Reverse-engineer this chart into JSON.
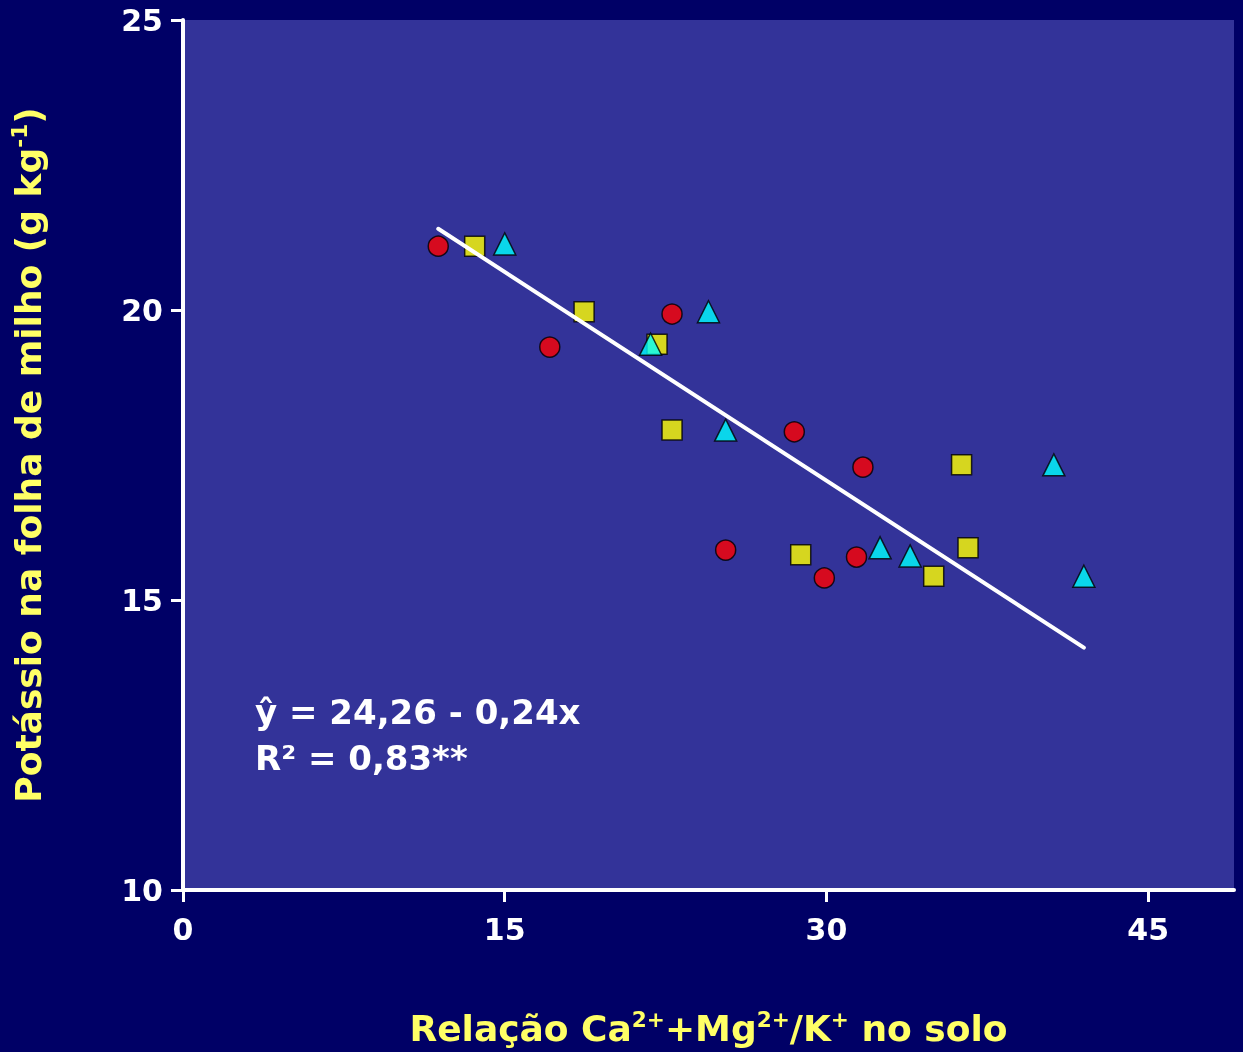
{
  "chart_data": {
    "type": "scatter",
    "xlabel": "Relação Ca$^{2+}$+Mg$^{2+}$/K$^{+}$ no solo",
    "ylabel": "Potássio na folha de milho (g kg$^{-1}$)",
    "xlim": [
      0,
      49
    ],
    "xticks": [
      0,
      15,
      30,
      45
    ],
    "ylim": [
      10,
      25
    ],
    "yticks": [
      10,
      15,
      20,
      25
    ],
    "grid": false,
    "annotations": [
      "ŷ = 24,26 - 0,24x",
      "R² = 0,83**"
    ],
    "series": [
      {
        "type": "scatter",
        "marker": "circle",
        "color": "#ff0000",
        "x": [
          11.9,
          17.1,
          22.8,
          25.3,
          28.5,
          29.9,
          31.4,
          31.7
        ],
        "values": [
          21.1,
          19.36,
          19.93,
          15.86,
          17.9,
          15.38,
          15.74,
          17.29
        ]
      },
      {
        "type": "scatter",
        "marker": "square",
        "color": "#ffff00",
        "x": [
          13.6,
          18.7,
          22.1,
          22.8,
          28.8,
          35.0,
          36.3,
          36.6
        ],
        "values": [
          21.1,
          19.97,
          19.41,
          17.93,
          15.78,
          15.41,
          17.33,
          15.9
        ]
      },
      {
        "type": "scatter",
        "marker": "triangle",
        "color": "#00ffff",
        "x": [
          15.0,
          21.8,
          24.5,
          25.3,
          32.5,
          33.9,
          40.6,
          42.0
        ],
        "values": [
          21.14,
          19.41,
          19.97,
          17.93,
          15.9,
          15.76,
          17.33,
          15.41
        ]
      },
      {
        "type": "line",
        "marker": "none",
        "line_style": "solid",
        "color": "#ffffff",
        "x": [
          11.9,
          42.0
        ],
        "values": [
          21.4,
          14.18
        ]
      }
    ]
  }
}
